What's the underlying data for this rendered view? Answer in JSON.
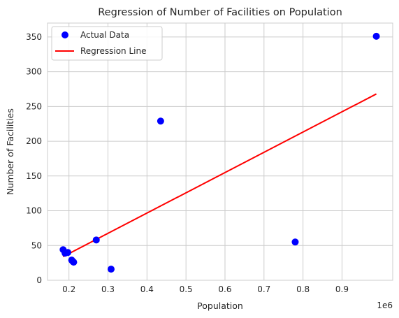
{
  "chart_data": {
    "type": "scatter",
    "title": "Regression of Number of Facilities on Population",
    "xlabel": "Population",
    "ylabel": "Number of Facilities",
    "x_offset_label": "1e6",
    "xlim": [
      0.145,
      1.03
    ],
    "ylim": [
      0,
      370
    ],
    "x_ticks": [
      0.2,
      0.3,
      0.4,
      0.5,
      0.6,
      0.7,
      0.8,
      0.9
    ],
    "x_tick_labels": [
      "0.2",
      "0.3",
      "0.4",
      "0.5",
      "0.6",
      "0.7",
      "0.8",
      "0.9"
    ],
    "y_ticks": [
      0,
      50,
      100,
      150,
      200,
      250,
      300,
      350
    ],
    "y_tick_labels": [
      "0",
      "50",
      "100",
      "150",
      "200",
      "250",
      "300",
      "350"
    ],
    "grid": true,
    "legend_position": "top-left",
    "series": [
      {
        "name": "Actual Data",
        "kind": "scatter",
        "color": "#0000ff",
        "x": [
          0.185,
          0.19,
          0.197,
          0.207,
          0.21,
          0.212,
          0.27,
          0.308,
          0.435,
          0.78,
          0.988
        ],
        "y": [
          44,
          39,
          40,
          29,
          27,
          26,
          58,
          16,
          229,
          55,
          351
        ]
      },
      {
        "name": "Regression Line",
        "kind": "line",
        "color": "#ff0000",
        "x": [
          0.185,
          0.988
        ],
        "y": [
          34,
          268
        ]
      }
    ]
  }
}
